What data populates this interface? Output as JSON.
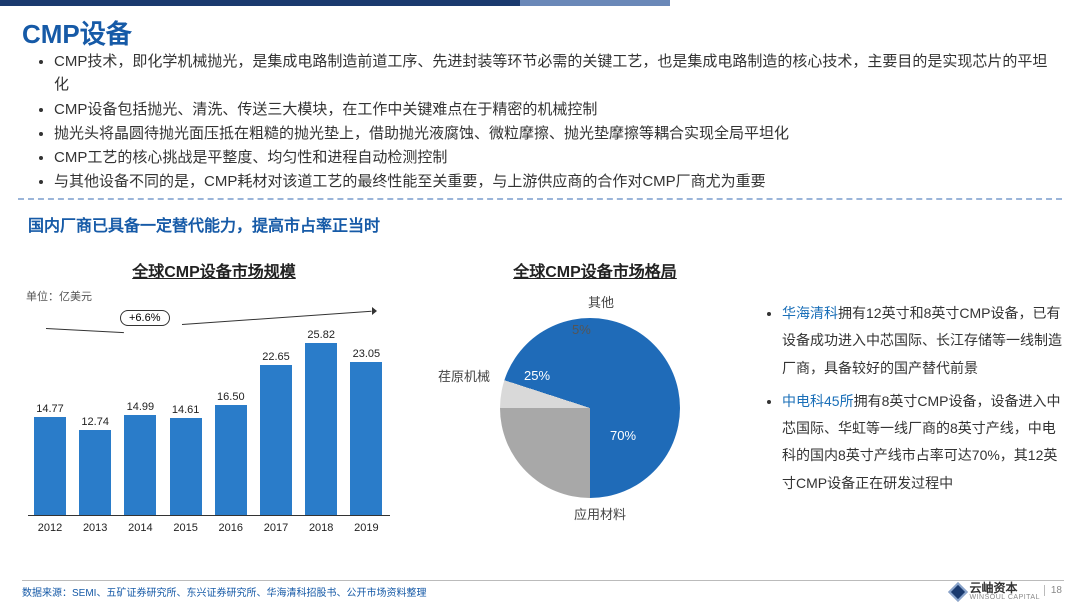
{
  "header": {
    "title": "CMP设备"
  },
  "bullets": [
    "CMP技术，即化学机械抛光，是集成电路制造前道工序、先进封装等环节必需的关键工艺，也是集成电路制造的核心技术，主要目的是实现芯片的平坦化",
    "CMP设备包括抛光、清洗、传送三大模块，在工作中关键难点在于精密的机械控制",
    "抛光头将晶圆待抛光面压抵在粗糙的抛光垫上，借助抛光液腐蚀、微粒摩擦、抛光垫摩擦等耦合实现全局平坦化",
    "CMP工艺的核心挑战是平整度、均匀性和进程自动检测控制",
    "与其他设备不同的是，CMP耗材对该道工艺的最终性能至关重要，与上游供应商的合作对CMP厂商尤为重要"
  ],
  "subtitle": "国内厂商已具备一定替代能力，提高市占率正当时",
  "bar_chart": {
    "title": "全球CMP设备市场规模",
    "unit": "单位：亿美元",
    "type": "bar",
    "categories": [
      "2012",
      "2013",
      "2014",
      "2015",
      "2016",
      "2017",
      "2018",
      "2019"
    ],
    "values": [
      14.77,
      12.74,
      14.99,
      14.61,
      16.5,
      22.65,
      25.82,
      23.05
    ],
    "bar_color": "#2a7cc9",
    "y_max": 28,
    "label_fontsize": 11,
    "growth_label": "+6.6%",
    "axis_color": "#333333",
    "background": "#ffffff"
  },
  "pie_chart": {
    "title": "全球CMP设备市场格局",
    "type": "pie",
    "slices": [
      {
        "label": "应用材料",
        "value": 70,
        "color": "#1f6bb8",
        "pct_text": "70%"
      },
      {
        "label": "荏原机械",
        "value": 25,
        "color": "#a8a8a8",
        "pct_text": "25%"
      },
      {
        "label": "其他",
        "value": 5,
        "color": "#d9d9d9",
        "pct_text": "5%"
      }
    ],
    "label_fontsize": 13,
    "background": "#ffffff"
  },
  "right_notes": [
    {
      "highlight": "华海清科",
      "rest": "拥有12英寸和8英寸CMP设备，已有设备成功进入中芯国际、长江存储等一线制造厂商，具备较好的国产替代前景"
    },
    {
      "highlight": "中电科45所",
      "rest": "拥有8英寸CMP设备，设备进入中芯国际、华虹等一线厂商的8英寸产线，中电科的国内8英寸产线市占率可达70%，其12英寸CMP设备正在研发过程中"
    }
  ],
  "footer": {
    "source": "数据来源：SEMI、五矿证券研究所、东兴证券研究所、华海清科招股书、公开市场资料整理",
    "logo_text": "云岫资本",
    "logo_sub": "WINSOUL CAPITAL",
    "page": "18"
  },
  "colors": {
    "title": "#165aa7",
    "header_dark": "#1a3a6e",
    "header_light": "#6a88b8",
    "divider": "#9bb5d9",
    "highlight": "#1a6fb8"
  }
}
